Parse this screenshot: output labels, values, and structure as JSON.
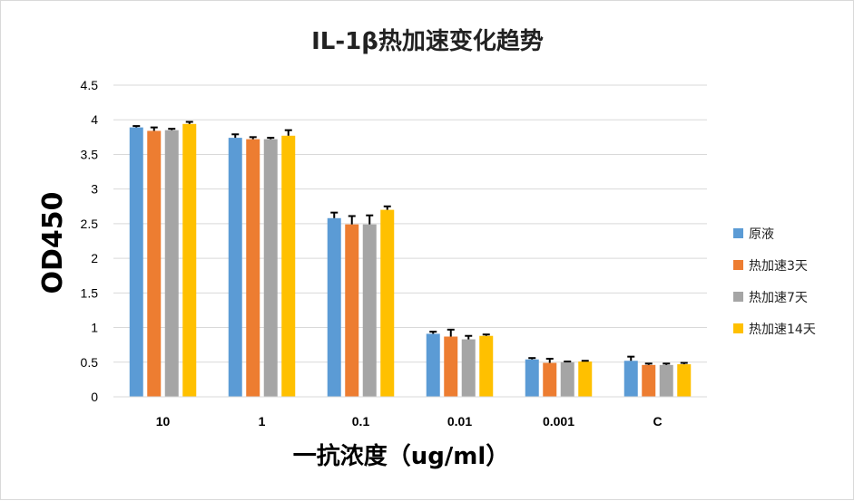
{
  "chart_data": {
    "type": "bar",
    "title": "IL-1β热加速变化趋势",
    "xlabel": "一抗浓度（ug/ml）",
    "ylabel": "OD450",
    "ylim": [
      0,
      4.5
    ],
    "ytick_step": 0.5,
    "yticks": [
      "0",
      "0.5",
      "1",
      "1.5",
      "2",
      "2.5",
      "3",
      "3.5",
      "4",
      "4.5"
    ],
    "grid": true,
    "legend_position": "right",
    "categories": [
      "10",
      "1",
      "0.1",
      "0.01",
      "0.001",
      "C"
    ],
    "series": [
      {
        "name": "原液",
        "color": "#5B9BD5",
        "values": [
          3.89,
          3.74,
          2.58,
          0.91,
          0.54,
          0.52
        ],
        "error": [
          0.02,
          0.05,
          0.08,
          0.03,
          0.02,
          0.06
        ]
      },
      {
        "name": "热加速3天",
        "color": "#ED7D31",
        "values": [
          3.84,
          3.72,
          2.49,
          0.87,
          0.49,
          0.46
        ],
        "error": [
          0.05,
          0.03,
          0.12,
          0.1,
          0.06,
          0.02
        ]
      },
      {
        "name": "热加速7天",
        "color": "#A5A5A5",
        "values": [
          3.85,
          3.72,
          2.49,
          0.83,
          0.5,
          0.46
        ],
        "error": [
          0.02,
          0.02,
          0.13,
          0.05,
          0.01,
          0.02
        ]
      },
      {
        "name": "热加速14天",
        "color": "#FFC000",
        "values": [
          3.94,
          3.77,
          2.7,
          0.88,
          0.51,
          0.47
        ],
        "error": [
          0.03,
          0.08,
          0.05,
          0.02,
          0.01,
          0.02
        ]
      }
    ]
  }
}
